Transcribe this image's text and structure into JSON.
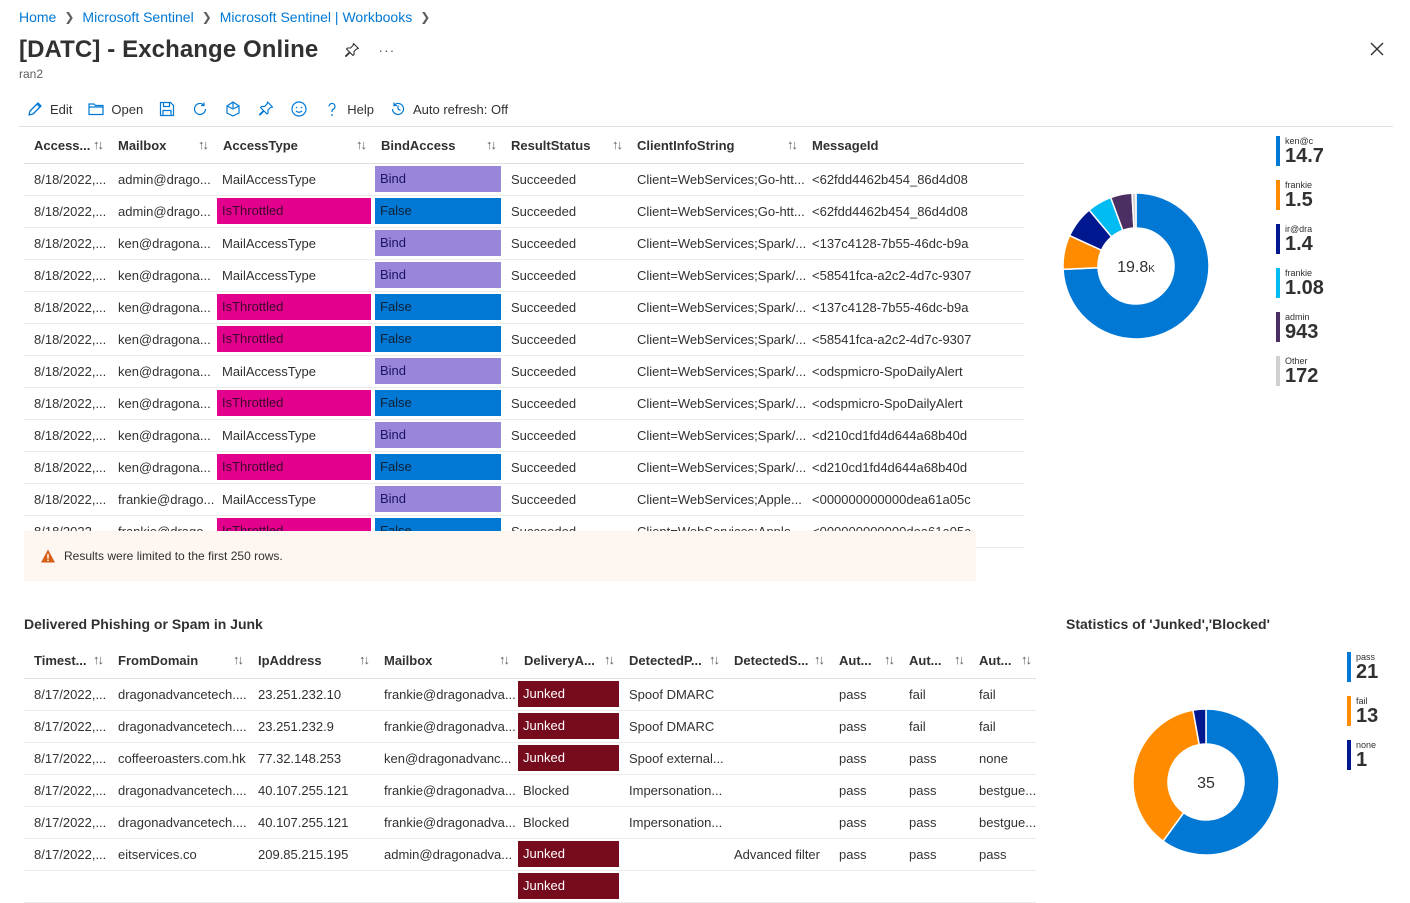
{
  "breadcrumb": [
    "Home",
    "Microsoft Sentinel",
    "Microsoft Sentinel | Workbooks"
  ],
  "title": "[DATC] - Exchange Online",
  "more_label": "···",
  "subtitle": "ran2",
  "toolbar": {
    "edit": "Edit",
    "open": "Open",
    "help": "Help",
    "auto_refresh": "Auto refresh: Off"
  },
  "top_table": {
    "columns": [
      "Access...",
      "Mailbox",
      "AccessType",
      "BindAccess",
      "ResultStatus",
      "ClientInfoString",
      "MessageId"
    ],
    "rows": [
      [
        "8/18/2022,...",
        "admin@drago...",
        "MailAccessType",
        "Bind",
        "Succeeded",
        "Client=WebServices;Go-htt...",
        "<62fdd4462b454_86d4d08"
      ],
      [
        "8/18/2022,...",
        "admin@drago...",
        "IsThrottled",
        "False",
        "Succeeded",
        "Client=WebServices;Go-htt...",
        "<62fdd4462b454_86d4d08"
      ],
      [
        "8/18/2022,...",
        "ken@dragona...",
        "MailAccessType",
        "Bind",
        "Succeeded",
        "Client=WebServices;Spark/...",
        "<137c4128-7b55-46dc-b9a"
      ],
      [
        "8/18/2022,...",
        "ken@dragona...",
        "MailAccessType",
        "Bind",
        "Succeeded",
        "Client=WebServices;Spark/...",
        "<58541fca-a2c2-4d7c-9307"
      ],
      [
        "8/18/2022,...",
        "ken@dragona...",
        "IsThrottled",
        "False",
        "Succeeded",
        "Client=WebServices;Spark/...",
        "<137c4128-7b55-46dc-b9a"
      ],
      [
        "8/18/2022,...",
        "ken@dragona...",
        "IsThrottled",
        "False",
        "Succeeded",
        "Client=WebServices;Spark/...",
        "<58541fca-a2c2-4d7c-9307"
      ],
      [
        "8/18/2022,...",
        "ken@dragona...",
        "MailAccessType",
        "Bind",
        "Succeeded",
        "Client=WebServices;Spark/...",
        "<odspmicro-SpoDailyAlert"
      ],
      [
        "8/18/2022,...",
        "ken@dragona...",
        "IsThrottled",
        "False",
        "Succeeded",
        "Client=WebServices;Spark/...",
        "<odspmicro-SpoDailyAlert"
      ],
      [
        "8/18/2022,...",
        "ken@dragona...",
        "MailAccessType",
        "Bind",
        "Succeeded",
        "Client=WebServices;Spark/...",
        "<d210cd1fd4d644a68b40d"
      ],
      [
        "8/18/2022,...",
        "ken@dragona...",
        "IsThrottled",
        "False",
        "Succeeded",
        "Client=WebServices;Spark/...",
        "<d210cd1fd4d644a68b40d"
      ],
      [
        "8/18/2022,...",
        "frankie@drago...",
        "MailAccessType",
        "Bind",
        "Succeeded",
        "Client=WebServices;Apple...",
        "<000000000000dea61a05c"
      ],
      [
        "8/18/2022,...",
        "frankie@drago...",
        "IsThrottled",
        "False",
        "Succeeded",
        "Client=WebServices;Apple...",
        "<000000000000dea61a05c"
      ]
    ]
  },
  "warning": "Results were limited to the first 250 rows.",
  "donut1": {
    "center_label": "19.8",
    "center_unit": "K",
    "legend": [
      {
        "label": "ken@c",
        "value": "14.7",
        "color": "#0078d4"
      },
      {
        "label": "frankie",
        "value": "1.5",
        "color": "#ff8c00"
      },
      {
        "label": "ir@dra",
        "value": "1.4",
        "color": "#00188f"
      },
      {
        "label": "frankie",
        "value": "1.08",
        "color": "#00bcf2"
      },
      {
        "label": "admin",
        "value": "943",
        "color": "#4b2e62"
      },
      {
        "label": "Other",
        "value": "172",
        "color": "#d2d0ce"
      }
    ]
  },
  "chart_data": [
    {
      "type": "pie",
      "title": "",
      "total": "19.8K",
      "series": [
        {
          "values": [
            14700,
            1500,
            1400,
            1080,
            943,
            172
          ]
        }
      ],
      "categories": [
        "ken@c",
        "frankie",
        "ir@dra",
        "frankie",
        "admin",
        "Other"
      ]
    },
    {
      "type": "pie",
      "title": "Statistics of 'Junked','Blocked'",
      "total": 35,
      "series": [
        {
          "values": [
            21,
            13,
            1
          ]
        }
      ],
      "categories": [
        "pass",
        "fail",
        "none"
      ]
    }
  ],
  "bottom_section": {
    "title": "Delivered Phishing or Spam in Junk",
    "columns": [
      "Timest...",
      "FromDomain",
      "IpAddress",
      "Mailbox",
      "DeliveryA...",
      "DetectedP...",
      "DetectedS...",
      "Aut...",
      "Aut...",
      "Aut..."
    ],
    "rows": [
      [
        "8/17/2022,...",
        "dragonadvancetech....",
        "23.251.232.10",
        "frankie@dragonadva...",
        "Junked",
        "Spoof DMARC",
        "",
        "pass",
        "fail",
        "fail"
      ],
      [
        "8/17/2022,...",
        "dragonadvancetech....",
        "23.251.232.9",
        "frankie@dragonadva...",
        "Junked",
        "Spoof DMARC",
        "",
        "pass",
        "fail",
        "fail"
      ],
      [
        "8/17/2022,...",
        "coffeeroasters.com.hk",
        "77.32.148.253",
        "ken@dragonadvanc...",
        "Junked",
        "Spoof external...",
        "",
        "pass",
        "pass",
        "none"
      ],
      [
        "8/17/2022,...",
        "dragonadvancetech....",
        "40.107.255.121",
        "frankie@dragonadva...",
        "Blocked",
        "Impersonation...",
        "",
        "pass",
        "pass",
        "bestgue..."
      ],
      [
        "8/17/2022,...",
        "dragonadvancetech....",
        "40.107.255.121",
        "frankie@dragonadva...",
        "Blocked",
        "Impersonation...",
        "",
        "pass",
        "pass",
        "bestgue..."
      ],
      [
        "8/17/2022,...",
        "eitservices.co",
        "209.85.215.195",
        "admin@dragonadva...",
        "Junked",
        "",
        "Advanced filter",
        "pass",
        "pass",
        "pass"
      ],
      [
        "",
        "",
        "",
        "",
        "Junked",
        "",
        "",
        "",
        "",
        ""
      ]
    ]
  },
  "donut2": {
    "title": "Statistics of 'Junked','Blocked'",
    "center_label": "35",
    "legend": [
      {
        "label": "pass",
        "value": "21",
        "color": "#0078d4"
      },
      {
        "label": "fail",
        "value": "13",
        "color": "#ff8c00"
      },
      {
        "label": "none",
        "value": "1",
        "color": "#00188f"
      }
    ]
  }
}
